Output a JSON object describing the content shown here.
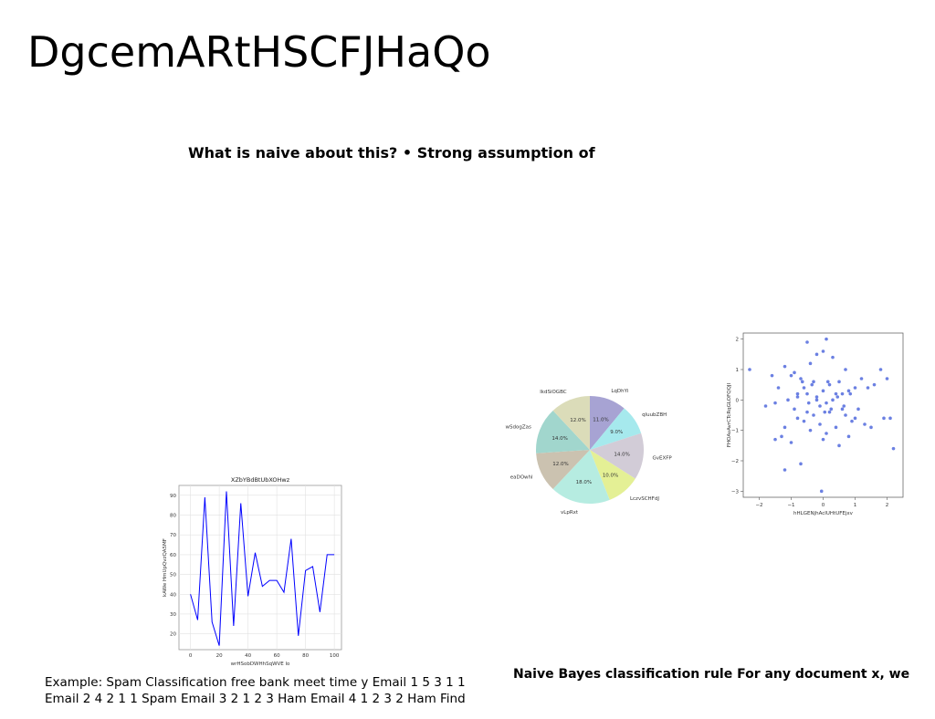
{
  "slide": {
    "title": "DgcemARtHSCFJHaQo",
    "subtitle": "What is naive about this? • Strong assumption of",
    "example_line1": "Example: Spam Classification free bank meet time y Email 1 5 3 1 1",
    "example_line2": "Email 2 4 2 1 1 Spam Email 3 2 1 2 3 Ham Email 4 1 2 3 2 Ham Find",
    "bayes_text": "Naive Bayes classification rule For any document x, we"
  },
  "chart_data": [
    {
      "type": "line",
      "title": "XZbYBdBtUbXOHwz",
      "xlabel": "wrHSobDWHhSqWVE lo",
      "ylabel": "kAWe HmUpQvzQA5MF",
      "x": [
        0,
        5,
        10,
        15,
        20,
        25,
        30,
        35,
        40,
        45,
        50,
        55,
        60,
        65,
        70,
        75,
        80,
        85,
        90,
        95,
        100
      ],
      "series": [
        {
          "values": [
            40,
            27,
            89,
            26,
            14,
            92,
            24,
            86,
            39,
            61,
            44,
            47,
            47,
            41,
            68,
            19,
            52,
            54,
            31,
            60,
            60
          ]
        }
      ],
      "xlim": [
        -8,
        105
      ],
      "ylim": [
        12,
        95
      ],
      "xticks": [
        0,
        20,
        40,
        60,
        80,
        100
      ],
      "yticks": [
        20,
        30,
        40,
        50,
        60,
        70,
        80,
        90
      ],
      "color": "#0000ff",
      "grid": true
    },
    {
      "type": "pie",
      "labels": [
        "LqDhYi",
        "qluubZBH",
        "GvEXFP",
        "LczvSCHFdJ",
        "vLpRxt",
        "eaDOwhl",
        "wSdogZas",
        "lkdSiOGBC"
      ],
      "values": [
        11.0,
        9.0,
        14.0,
        10.0,
        18.0,
        12.0,
        14.0,
        12.0
      ],
      "pct_labels": [
        "11.0%",
        "9.0%",
        "14.0%",
        "10.0%",
        "18.0%",
        "12.0%",
        "14.0%",
        "12.0%"
      ],
      "colors": [
        "#a7a3d3",
        "#a6e9ed",
        "#d2ccd7",
        "#e4f095",
        "#b6ece1",
        "#cbc2b0",
        "#a1d6cd",
        "#dbdcb9"
      ]
    },
    {
      "type": "scatter",
      "xlabel": "hHLGENjhAcIUHtUFEjxv",
      "ylabel": "FHOAvAvrCTcRqGLOFQQJI",
      "xlim": [
        -2.5,
        2.5
      ],
      "ylim": [
        -3.2,
        2.2
      ],
      "xticks": [
        -2,
        -1,
        0,
        1,
        2
      ],
      "yticks": [
        -3,
        -2,
        -1,
        0,
        1,
        2
      ],
      "color": "#3a55d8",
      "x": [
        -2.3,
        -1.8,
        -1.6,
        -1.5,
        -1.4,
        -1.3,
        -1.2,
        -1.2,
        -1.1,
        -1.0,
        -1.0,
        -0.9,
        -0.9,
        -0.8,
        -0.8,
        -0.7,
        -0.7,
        -0.6,
        -0.6,
        -0.5,
        -0.5,
        -0.5,
        -0.4,
        -0.4,
        -0.3,
        -0.3,
        -0.2,
        -0.2,
        -0.1,
        -0.1,
        0.0,
        0.0,
        0.0,
        0.1,
        0.1,
        0.1,
        0.2,
        0.2,
        0.3,
        0.3,
        0.4,
        0.4,
        0.5,
        0.5,
        0.6,
        0.6,
        0.7,
        0.7,
        0.8,
        0.8,
        0.9,
        1.0,
        1.0,
        1.1,
        1.2,
        1.3,
        1.4,
        1.5,
        1.6,
        1.8,
        1.9,
        2.0,
        2.1,
        2.2,
        -1.5,
        -0.8,
        0.15,
        -0.05,
        0.25,
        -0.35,
        0.45,
        -0.65,
        0.65,
        -1.2,
        0.85,
        -0.2,
        0.05,
        -0.45
      ],
      "y": [
        1.0,
        -0.2,
        0.8,
        -1.3,
        0.4,
        -1.2,
        1.1,
        -0.9,
        0.0,
        0.8,
        -1.4,
        0.9,
        -0.3,
        0.1,
        -0.6,
        0.7,
        -2.1,
        0.4,
        -0.7,
        1.9,
        0.2,
        -0.4,
        1.2,
        -1.0,
        0.6,
        -0.5,
        1.5,
        0.1,
        -0.2,
        -0.8,
        1.6,
        0.3,
        -1.3,
        2.0,
        -0.1,
        -1.1,
        0.5,
        -0.4,
        1.4,
        0.0,
        -0.9,
        0.2,
        0.6,
        -1.5,
        0.2,
        -0.3,
        1.0,
        -0.5,
        0.3,
        -1.2,
        -0.7,
        0.4,
        -0.6,
        -0.3,
        0.7,
        -0.8,
        0.4,
        -0.9,
        0.5,
        1.0,
        -0.6,
        0.7,
        -0.6,
        -1.6,
        -0.1,
        0.2,
        0.6,
        -3.0,
        -0.3,
        0.5,
        0.1,
        0.6,
        -0.2,
        -2.3,
        0.2,
        0.0,
        -0.4,
        -0.1
      ],
      "grid": false
    }
  ]
}
